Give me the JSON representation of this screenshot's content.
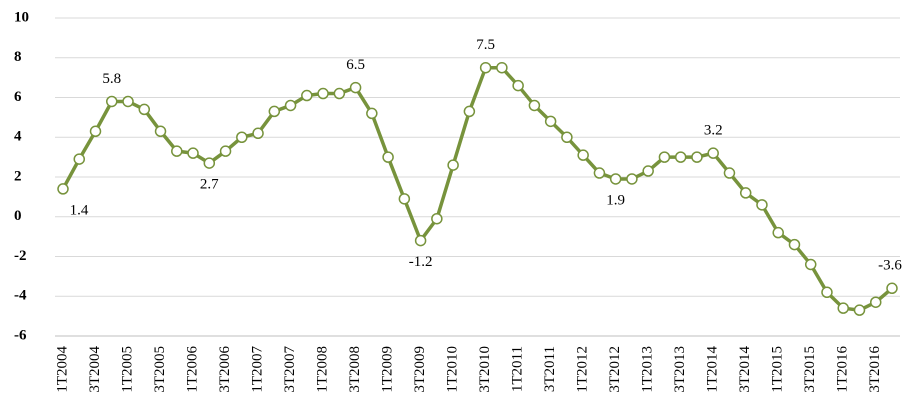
{
  "chart_data": {
    "type": "line",
    "categories": [
      "1T2004",
      null,
      "3T2004",
      null,
      "1T2005",
      null,
      "3T2005",
      null,
      "1T2006",
      null,
      "3T2006",
      null,
      "1T2007",
      null,
      "3T2007",
      null,
      "1T2008",
      null,
      "3T2008",
      null,
      "1T2009",
      null,
      "3T2009",
      null,
      "1T2010",
      null,
      "3T2010",
      null,
      "1T2011",
      null,
      "3T2011",
      null,
      "1T2012",
      null,
      "3T2012",
      null,
      "1T2013",
      null,
      "3T2013",
      null,
      "1T2014",
      null,
      "3T2014",
      null,
      "1T2015",
      null,
      "3T2015",
      null,
      "1T2016",
      null,
      "3T2016",
      null
    ],
    "series": [
      {
        "color": "#77933c",
        "values": [
          1.4,
          2.9,
          4.3,
          5.8,
          5.8,
          5.4,
          4.3,
          3.3,
          3.2,
          2.7,
          3.3,
          4.0,
          4.2,
          5.3,
          5.6,
          6.1,
          6.2,
          6.2,
          6.5,
          5.2,
          3.0,
          0.9,
          -1.2,
          -0.1,
          2.6,
          5.3,
          7.5,
          7.5,
          6.6,
          5.6,
          4.8,
          4.0,
          3.1,
          2.2,
          1.9,
          1.9,
          2.3,
          3.0,
          3.0,
          3.0,
          3.2,
          2.2,
          1.2,
          0.6,
          -0.8,
          -1.4,
          -2.4,
          -3.8,
          -4.6,
          -4.7,
          -4.3,
          -3.6
        ],
        "value_labels": [
          "1.4",
          null,
          null,
          "5.8",
          null,
          null,
          null,
          null,
          null,
          "2.7",
          null,
          null,
          null,
          null,
          null,
          null,
          null,
          null,
          "6.5",
          null,
          null,
          null,
          "-1.2",
          null,
          null,
          null,
          "7.5",
          null,
          null,
          null,
          null,
          null,
          null,
          null,
          "1.9",
          null,
          null,
          null,
          null,
          null,
          "3.2",
          null,
          null,
          null,
          null,
          null,
          null,
          null,
          null,
          null,
          null,
          "-3.6"
        ]
      }
    ],
    "ylim": [
      -6,
      10
    ],
    "yticks": [
      -6,
      -4,
      -2,
      0,
      2,
      4,
      6,
      8,
      10
    ],
    "grid": true
  }
}
